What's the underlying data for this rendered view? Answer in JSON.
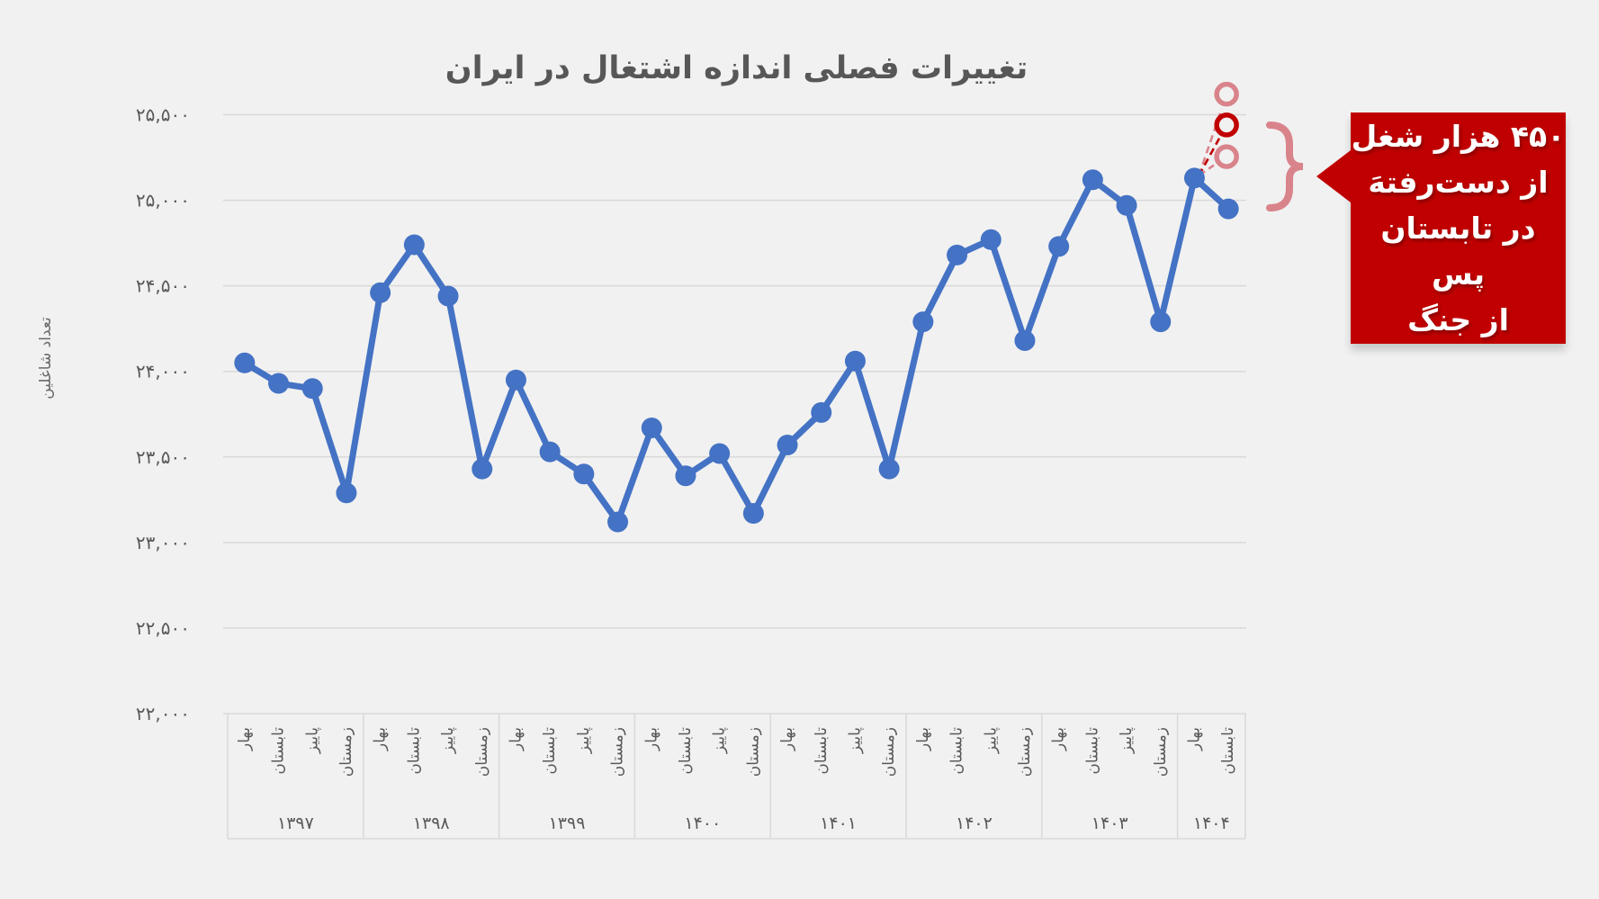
{
  "title": "تغییرات فصلی اندازه اشتغال در ایران",
  "y_axis": {
    "title": "تعداد شاغلین",
    "tick_labels": [
      "۲۵,۵۰۰",
      "۲۵,۰۰۰",
      "۲۴,۵۰۰",
      "۲۴,۰۰۰",
      "۲۳,۵۰۰",
      "۲۳,۰۰۰",
      "۲۲,۵۰۰",
      "۲۲,۰۰۰"
    ],
    "tick_values": [
      25500,
      25000,
      24500,
      24000,
      23500,
      23000,
      22500,
      22000
    ],
    "min": 22000,
    "max": 25500
  },
  "x_axis": {
    "groups": [
      {
        "year": "۱۳۹۷",
        "seasons": [
          "بهار",
          "تابستان",
          "پاییز",
          "زمستان"
        ]
      },
      {
        "year": "۱۳۹۸",
        "seasons": [
          "بهار",
          "تابستان",
          "پاییز",
          "زمستان"
        ]
      },
      {
        "year": "۱۳۹۹",
        "seasons": [
          "بهار",
          "تابستان",
          "پاییز",
          "زمستان"
        ]
      },
      {
        "year": "۱۴۰۰",
        "seasons": [
          "بهار",
          "تابستان",
          "پاییز",
          "زمستان"
        ]
      },
      {
        "year": "۱۴۰۱",
        "seasons": [
          "بهار",
          "تابستان",
          "پاییز",
          "زمستان"
        ]
      },
      {
        "year": "۱۴۰۲",
        "seasons": [
          "بهار",
          "تابستان",
          "پاییز",
          "زمستان"
        ]
      },
      {
        "year": "۱۴۰۳",
        "seasons": [
          "بهار",
          "تابستان",
          "پاییز",
          "زمستان"
        ]
      },
      {
        "year": "۱۴۰۴",
        "seasons": [
          "بهار",
          "تابستان"
        ]
      }
    ]
  },
  "chart_data": {
    "type": "line",
    "title": "تغییرات فصلی اندازه اشتغال در ایران",
    "xlabel": "",
    "ylabel": "تعداد شاغلین",
    "ylim": [
      22000,
      25500
    ],
    "grid": true,
    "legend": "none",
    "categories": [
      "بهار ۱۳۹۷",
      "تابستان ۱۳۹۷",
      "پاییز ۱۳۹۷",
      "زمستان ۱۳۹۷",
      "بهار ۱۳۹۸",
      "تابستان ۱۳۹۸",
      "پاییز ۱۳۹۸",
      "زمستان ۱۳۹۸",
      "بهار ۱۳۹۹",
      "تابستان ۱۳۹۹",
      "پاییز ۱۳۹۹",
      "زمستان ۱۳۹۹",
      "بهار ۱۴۰۰",
      "تابستان ۱۴۰۰",
      "پاییز ۱۴۰۰",
      "زمستان ۱۴۰۰",
      "بهار ۱۴۰۱",
      "تابستان ۱۴۰۱",
      "پاییز ۱۴۰۱",
      "زمستان ۱۴۰۱",
      "بهار ۱۴۰۲",
      "تابستان ۱۴۰۲",
      "پاییز ۱۴۰۲",
      "زمستان ۱۴۰۲",
      "بهار ۱۴۰۳",
      "تابستان ۱۴۰۳",
      "پاییز ۱۴۰۳",
      "زمستان ۱۴۰۳",
      "بهار ۱۴۰۴",
      "تابستان ۱۴۰۴"
    ],
    "series": [
      {
        "name": "تعداد شاغلین",
        "color": "#4472C4",
        "values": [
          24050,
          23930,
          23900,
          23290,
          24460,
          24740,
          24440,
          23430,
          23950,
          23530,
          23400,
          23120,
          23670,
          23390,
          23520,
          23170,
          23570,
          23760,
          24060,
          23430,
          24290,
          24680,
          24770,
          24180,
          24730,
          25120,
          24970,
          24290,
          25130,
          24950
        ]
      }
    ],
    "projections": {
      "from_category": "بهار ۱۴۰۴",
      "at_category": "تابستان ۱۴۰۴",
      "points": [
        {
          "value": 25620,
          "color": "#D9838B",
          "style": "dashed-hollow-circle"
        },
        {
          "value": 25440,
          "color": "#C00000",
          "style": "dashed-hollow-circle"
        },
        {
          "value": 25255,
          "color": "#D9838B",
          "style": "dashed-hollow-circle"
        }
      ]
    }
  },
  "callout": {
    "lines": [
      "۴۵۰ هزار شغل",
      "از دست‌رفتهَ",
      "در تابستان پس",
      "از جنگ"
    ],
    "bg_color": "#C00000",
    "text_color": "#FFFFFF",
    "brace_glyph": "}"
  },
  "colors": {
    "background": "#F1F1F1",
    "gridline": "#D9D9D9",
    "axis_text": "#595959",
    "title_text": "#575757",
    "series_blue": "#4472C4",
    "accent_red": "#C00000",
    "accent_pink": "#D9838B"
  }
}
